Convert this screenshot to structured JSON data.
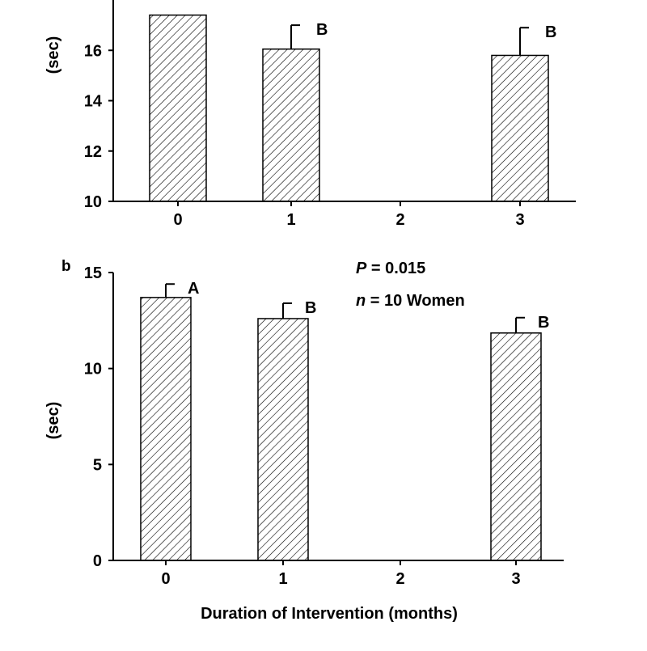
{
  "chart_data": [
    {
      "type": "bar",
      "panel_label": "",
      "categories": [
        "0",
        "1",
        "2",
        "3"
      ],
      "values": [
        17.4,
        16.05,
        null,
        15.8
      ],
      "errors": [
        null,
        0.95,
        null,
        1.1
      ],
      "letters": [
        "",
        "B",
        "",
        "B"
      ],
      "ylabel": "(sec)",
      "xlabel": "",
      "ylim": [
        10,
        18
      ],
      "yticks": [
        "10",
        "12",
        "14",
        "16"
      ],
      "annotations": []
    },
    {
      "type": "bar",
      "panel_label": "b",
      "categories": [
        "0",
        "1",
        "2",
        "3"
      ],
      "values": [
        13.7,
        12.6,
        null,
        11.85
      ],
      "errors": [
        0.7,
        0.8,
        null,
        0.8
      ],
      "letters": [
        "A",
        "B",
        "",
        "B"
      ],
      "ylabel": "(sec)",
      "xlabel": "Duration of Intervention (months)",
      "ylim": [
        0,
        15
      ],
      "yticks": [
        "0",
        "5",
        "10",
        "15"
      ],
      "annotations": [
        {
          "italic": "P",
          "rest": " = 0.015"
        },
        {
          "italic": "n",
          "rest": " = 10 Women"
        }
      ]
    }
  ]
}
